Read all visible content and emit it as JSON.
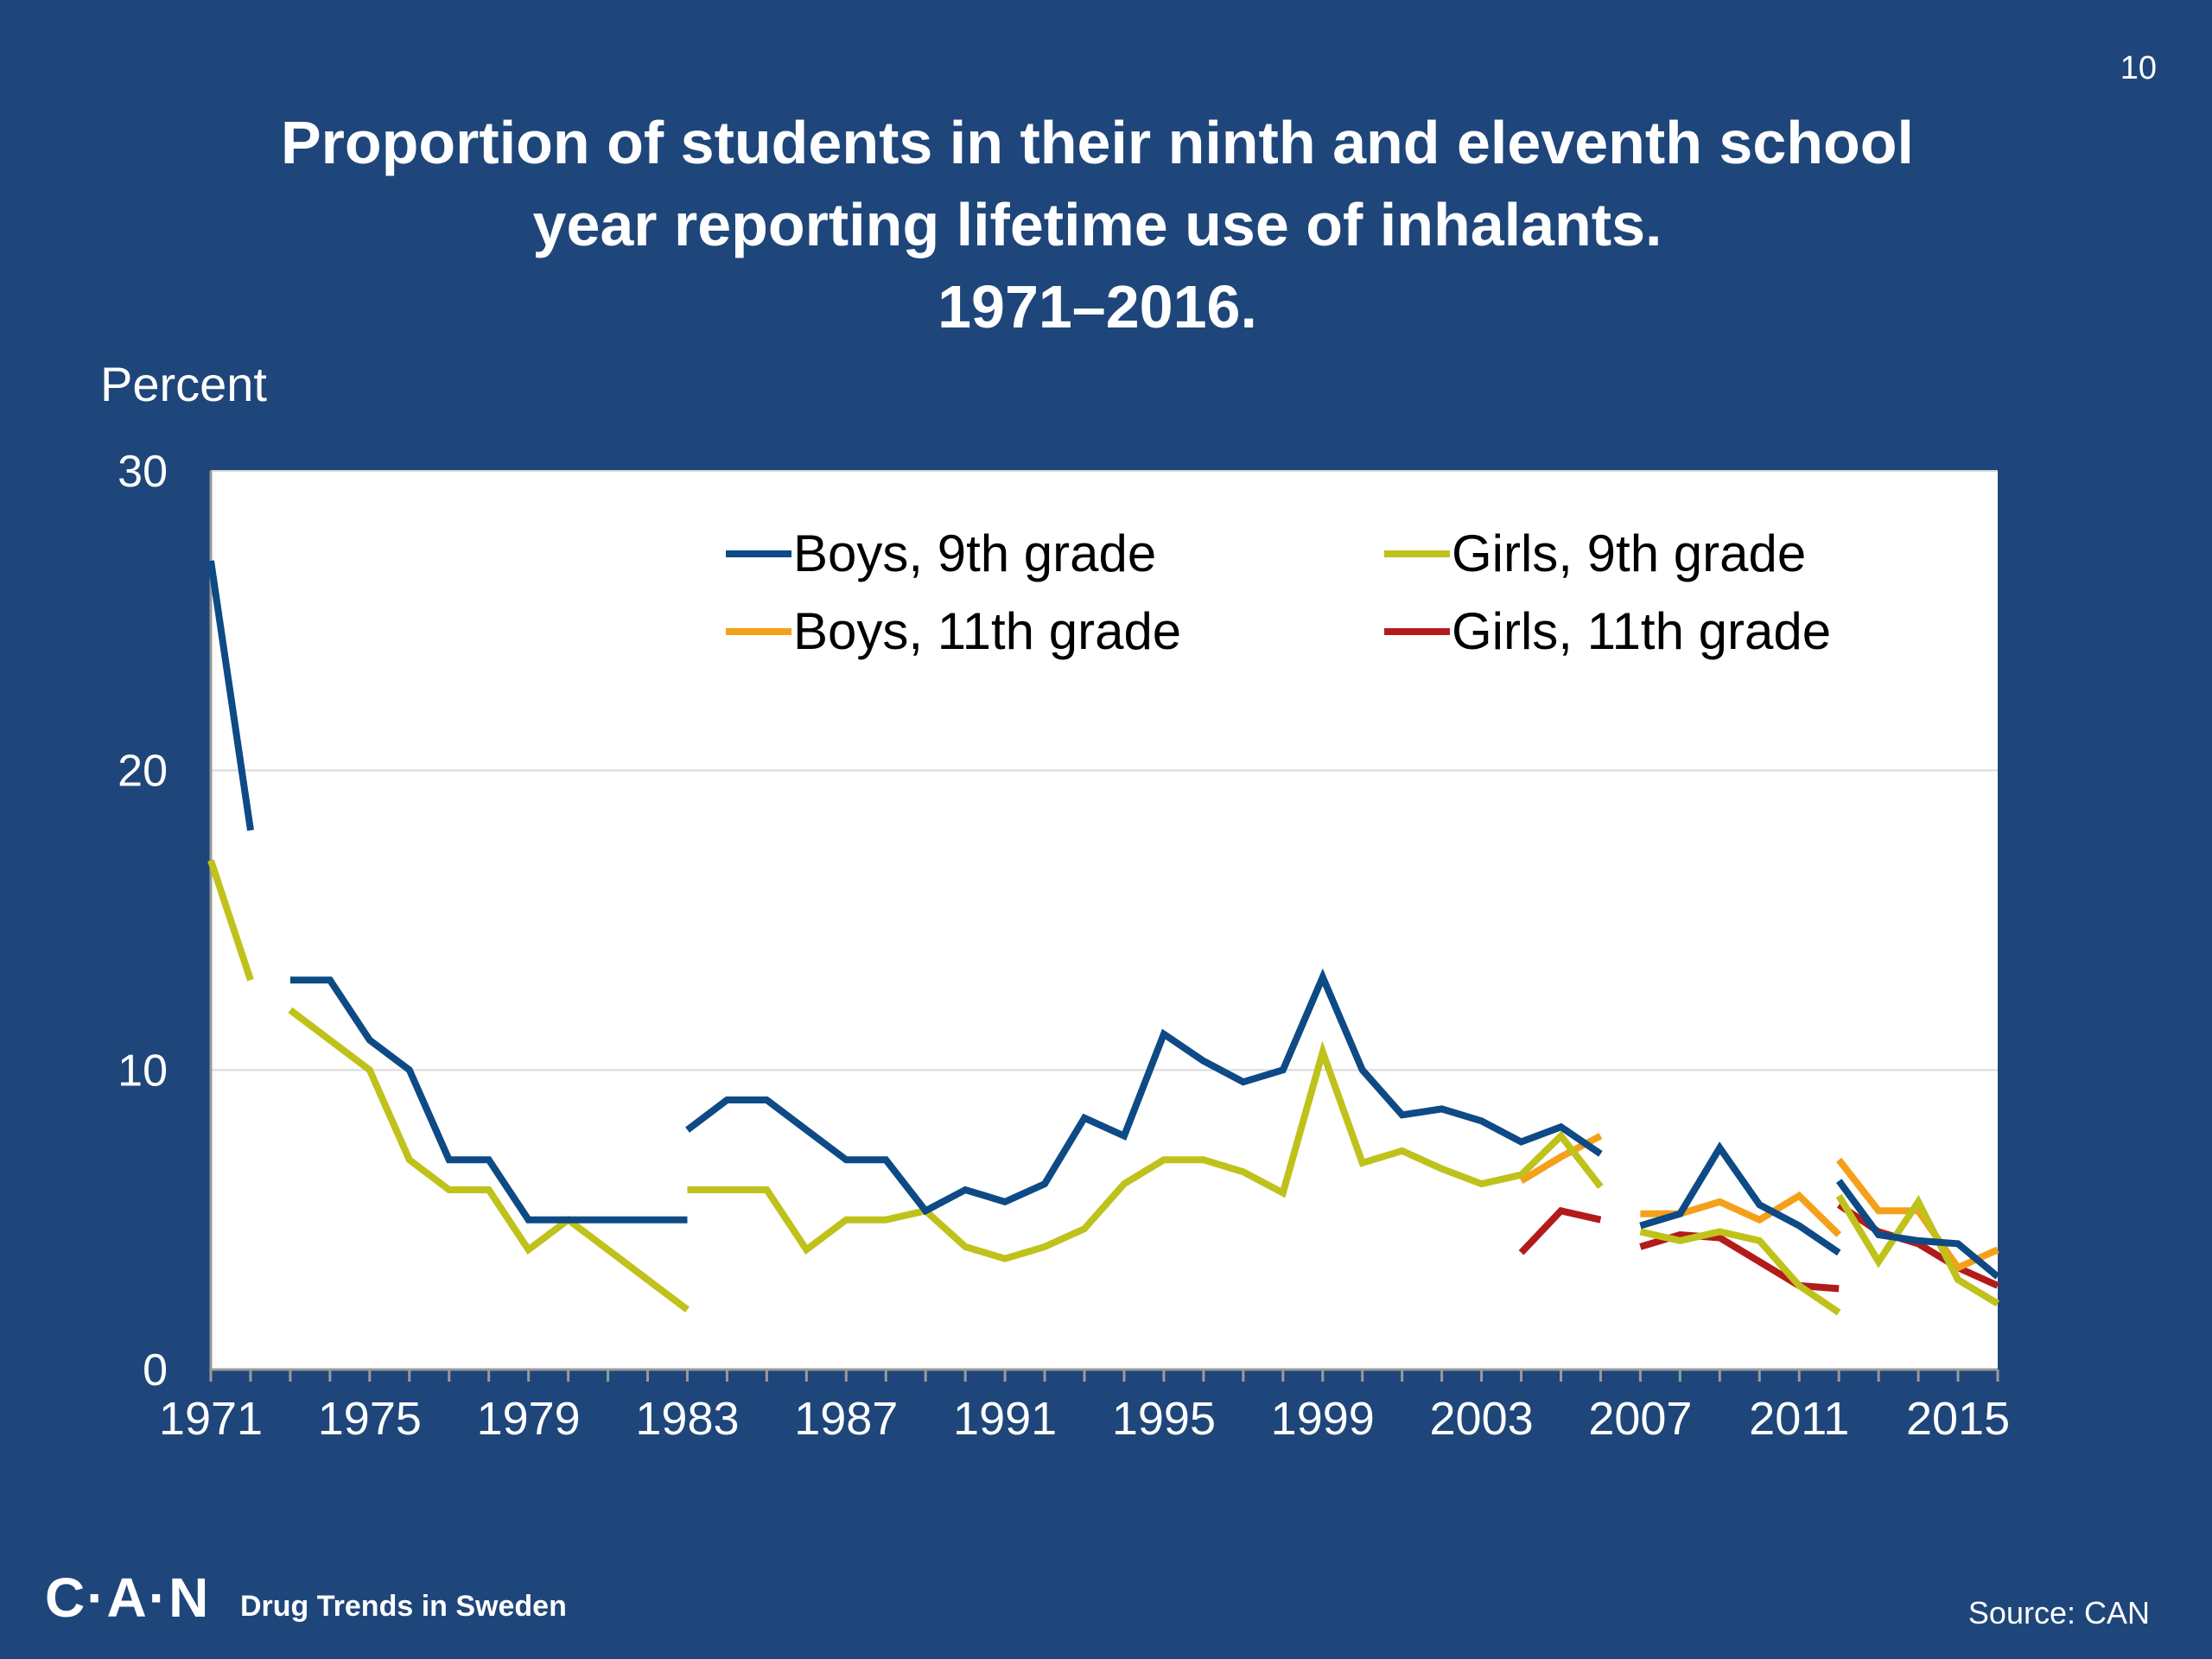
{
  "page_number": "10",
  "title_lines": [
    "Proportion of students in their ninth and eleventh school",
    "year reporting lifetime use of inhalants.",
    "1971–2016."
  ],
  "footer": {
    "logo": "C·A·N",
    "tagline": "Drug Trends in Sweden",
    "source": "Source: CAN"
  },
  "chart_data": {
    "type": "line",
    "ylabel": "Percent",
    "xlabel": "",
    "ylim": [
      0,
      30
    ],
    "yticks": [
      0,
      10,
      20,
      30
    ],
    "xlim": [
      1971,
      2016
    ],
    "xticks": [
      1971,
      1975,
      1979,
      1983,
      1987,
      1991,
      1995,
      1999,
      2003,
      2007,
      2011,
      2015
    ],
    "grid": "horizontal",
    "legend_position": "top",
    "series": [
      {
        "name": "Boys, 9th grade",
        "color": "#0e4a85",
        "segments": [
          [
            [
              1971,
              27
            ],
            [
              1972,
              18
            ]
          ],
          [
            [
              1973,
              13
            ],
            [
              1974,
              13
            ],
            [
              1975,
              11
            ],
            [
              1976,
              10
            ],
            [
              1977,
              7
            ],
            [
              1978,
              7
            ],
            [
              1979,
              5
            ],
            [
              1980,
              5
            ],
            [
              1981,
              5
            ],
            [
              1982,
              5
            ],
            [
              1983,
              5
            ]
          ],
          [
            [
              1983,
              8
            ],
            [
              1984,
              9
            ],
            [
              1985,
              9
            ],
            [
              1986,
              8
            ],
            [
              1987,
              7
            ],
            [
              1988,
              7
            ],
            [
              1989,
              5.3
            ],
            [
              1990,
              6
            ],
            [
              1991,
              5.6
            ],
            [
              1992,
              6.2
            ],
            [
              1993,
              8.4
            ],
            [
              1994,
              7.8
            ],
            [
              1995,
              11.2
            ],
            [
              1996,
              10.3
            ],
            [
              1997,
              9.6
            ],
            [
              1998,
              10
            ],
            [
              1999,
              13.1
            ],
            [
              2000,
              10
            ],
            [
              2001,
              8.5
            ],
            [
              2002,
              8.7
            ],
            [
              2003,
              8.3
            ],
            [
              2004,
              7.6
            ],
            [
              2005,
              8.1
            ],
            [
              2006,
              7.2
            ]
          ],
          [
            [
              2007,
              4.8
            ],
            [
              2008,
              5.2
            ],
            [
              2009,
              7.4
            ],
            [
              2010,
              5.5
            ],
            [
              2011,
              4.8
            ],
            [
              2012,
              3.9
            ]
          ],
          [
            [
              2012,
              6.3
            ],
            [
              2013,
              4.5
            ],
            [
              2014,
              4.3
            ],
            [
              2015,
              4.2
            ],
            [
              2016,
              3.1
            ]
          ]
        ]
      },
      {
        "name": "Girls, 9th grade",
        "color": "#bfc21a",
        "segments": [
          [
            [
              1971,
              17
            ],
            [
              1972,
              13
            ]
          ],
          [
            [
              1973,
              12
            ],
            [
              1974,
              11
            ],
            [
              1975,
              10
            ],
            [
              1976,
              7
            ],
            [
              1977,
              6
            ],
            [
              1978,
              6
            ],
            [
              1979,
              4
            ],
            [
              1980,
              5
            ],
            [
              1981,
              4
            ],
            [
              1982,
              3
            ],
            [
              1983,
              2
            ]
          ],
          [
            [
              1983,
              6
            ],
            [
              1984,
              6
            ],
            [
              1985,
              6
            ],
            [
              1986,
              4
            ],
            [
              1987,
              5
            ],
            [
              1988,
              5
            ],
            [
              1989,
              5.3
            ],
            [
              1990,
              4.1
            ],
            [
              1991,
              3.7
            ],
            [
              1992,
              4.1
            ],
            [
              1993,
              4.7
            ],
            [
              1994,
              6.2
            ],
            [
              1995,
              7
            ],
            [
              1996,
              7
            ],
            [
              1997,
              6.6
            ],
            [
              1998,
              5.9
            ],
            [
              1999,
              10.6
            ],
            [
              2000,
              6.9
            ],
            [
              2001,
              7.3
            ],
            [
              2002,
              6.7
            ],
            [
              2003,
              6.2
            ],
            [
              2004,
              6.5
            ],
            [
              2005,
              7.8
            ],
            [
              2006,
              6.1
            ]
          ],
          [
            [
              2007,
              4.6
            ],
            [
              2008,
              4.3
            ],
            [
              2009,
              4.6
            ],
            [
              2010,
              4.3
            ],
            [
              2011,
              2.8
            ],
            [
              2012,
              1.9
            ]
          ],
          [
            [
              2012,
              5.8
            ],
            [
              2013,
              3.6
            ],
            [
              2014,
              5.6
            ],
            [
              2015,
              3
            ],
            [
              2016,
              2.2
            ]
          ]
        ]
      },
      {
        "name": "Boys, 11th grade",
        "color": "#f5a01a",
        "segments": [
          [
            [
              2004,
              6.3
            ],
            [
              2005,
              7.1
            ],
            [
              2006,
              7.8
            ]
          ],
          [
            [
              2007,
              5.2
            ],
            [
              2008,
              5.2
            ],
            [
              2009,
              5.6
            ],
            [
              2010,
              5
            ],
            [
              2011,
              5.8
            ],
            [
              2012,
              4.5
            ]
          ],
          [
            [
              2012,
              7
            ],
            [
              2013,
              5.3
            ],
            [
              2014,
              5.3
            ],
            [
              2015,
              3.4
            ],
            [
              2016,
              4
            ]
          ]
        ]
      },
      {
        "name": "Girls, 11th grade",
        "color": "#b31b1b",
        "segments": [
          [
            [
              2004,
              3.9
            ],
            [
              2005,
              5.3
            ],
            [
              2006,
              5
            ]
          ],
          [
            [
              2007,
              4.1
            ],
            [
              2008,
              4.5
            ],
            [
              2009,
              4.4
            ],
            [
              2010,
              3.6
            ],
            [
              2011,
              2.8
            ],
            [
              2012,
              2.7
            ]
          ],
          [
            [
              2012,
              5.5
            ],
            [
              2013,
              4.6
            ],
            [
              2014,
              4.2
            ],
            [
              2015,
              3.4
            ],
            [
              2016,
              2.8
            ]
          ]
        ]
      }
    ]
  }
}
